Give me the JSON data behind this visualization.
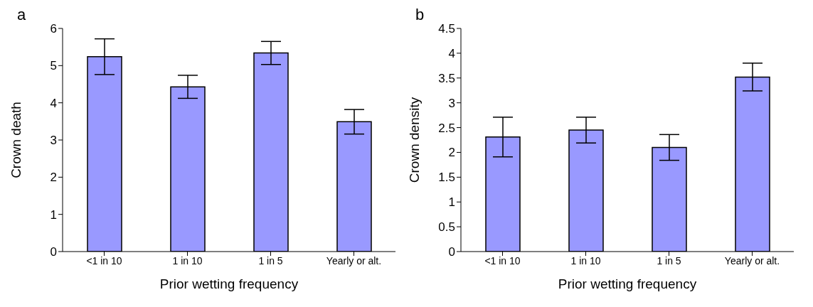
{
  "chart_data": [
    {
      "type": "bar",
      "title": "a",
      "xlabel": "Prior wetting frequency",
      "ylabel": "Crown death",
      "categories": [
        "<1 in 10",
        "1 in 10",
        "1 in 5",
        "Yearly or alt."
      ],
      "values": [
        5.24,
        4.43,
        5.34,
        3.49
      ],
      "errors": [
        0.48,
        0.31,
        0.31,
        0.33
      ],
      "color": "#9999ff",
      "ylim": [
        0,
        6
      ],
      "yticks": [
        0,
        1,
        2,
        3,
        4,
        5,
        6
      ],
      "grid": false,
      "legend": false
    },
    {
      "type": "bar",
      "title": "b",
      "xlabel": "Prior wetting frequency",
      "ylabel": "Crown density",
      "categories": [
        "<1 in 10",
        "1 in 10",
        "1 in 5",
        "Yearly or alt."
      ],
      "values": [
        2.31,
        2.45,
        2.1,
        3.52
      ],
      "errors": [
        0.4,
        0.26,
        0.26,
        0.28
      ],
      "color": "#9999ff",
      "ylim": [
        0,
        4.5
      ],
      "yticks": [
        0,
        0.5,
        1,
        1.5,
        2,
        2.5,
        3,
        3.5,
        4,
        4.5
      ],
      "grid": false,
      "legend": false
    }
  ]
}
